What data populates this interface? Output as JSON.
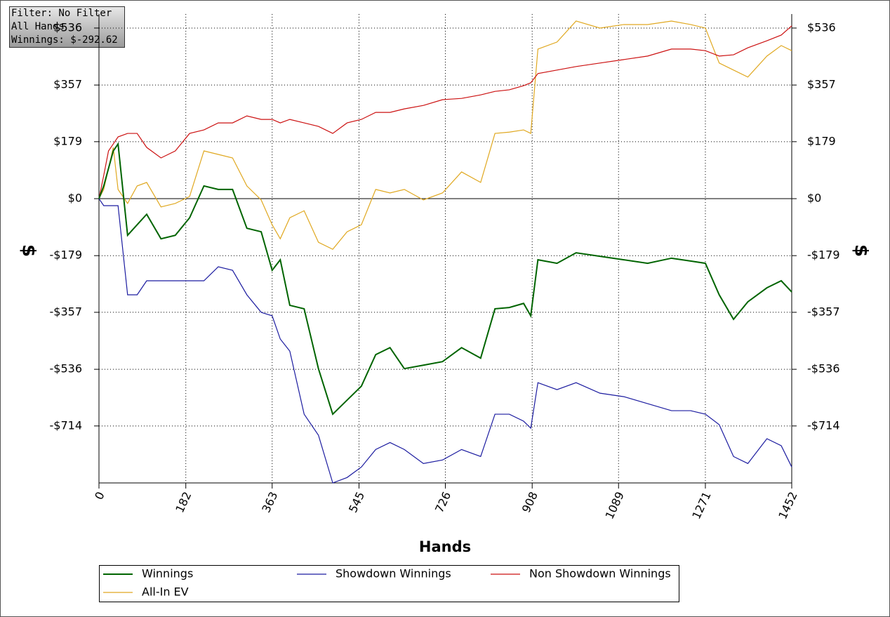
{
  "chart_data": {
    "type": "line",
    "xlabel": "Hands",
    "ylabel": "$",
    "annotations": [
      "Filter: No Filter",
      "All Hands",
      "Winnings: $-292.62"
    ],
    "grid": true,
    "legend": "bottom",
    "xlim": [
      0,
      1452
    ],
    "xticks": [
      0,
      182,
      363,
      545,
      726,
      908,
      1089,
      1271,
      1452
    ],
    "ylim": [
      -893,
      580
    ],
    "yticks": [
      {
        "value": 536,
        "label": "$536"
      },
      {
        "value": 357,
        "label": "$357"
      },
      {
        "value": 179,
        "label": "$179"
      },
      {
        "value": 0,
        "label": "$0"
      },
      {
        "value": -179,
        "label": "-$179"
      },
      {
        "value": -357,
        "label": "-$357"
      },
      {
        "value": -536,
        "label": "-$536"
      },
      {
        "value": -714,
        "label": "-$714"
      }
    ],
    "x": [
      0,
      10,
      20,
      30,
      40,
      60,
      80,
      100,
      130,
      160,
      190,
      220,
      250,
      280,
      310,
      340,
      363,
      380,
      400,
      430,
      460,
      490,
      520,
      550,
      580,
      610,
      640,
      680,
      720,
      760,
      800,
      830,
      860,
      890,
      905,
      920,
      960,
      1000,
      1050,
      1100,
      1150,
      1200,
      1240,
      1271,
      1300,
      1330,
      1360,
      1400,
      1430,
      1452
    ],
    "series": [
      {
        "name": "Winnings",
        "color": "#006400",
        "values": [
          0,
          40,
          95,
          150,
          172,
          -115,
          -82,
          -49,
          -126,
          -115,
          -60,
          40,
          29,
          29,
          -93,
          -104,
          -225,
          -192,
          -335,
          -346,
          -534,
          -677,
          -633,
          -589,
          -490,
          -468,
          -534,
          -523,
          -512,
          -468,
          -501,
          -346,
          -342,
          -329,
          -368,
          -192,
          -203,
          -170,
          -181,
          -192,
          -203,
          -187,
          -196,
          -203,
          -302,
          -379,
          -324,
          -280,
          -258,
          -293
        ]
      },
      {
        "name": "Showdown Winnings",
        "color": "#1c1ca0",
        "values": [
          0,
          -22,
          -22,
          -22,
          -22,
          -302,
          -302,
          -258,
          -258,
          -258,
          -258,
          -258,
          -214,
          -225,
          -302,
          -357,
          -368,
          -441,
          -479,
          -677,
          -743,
          -893,
          -876,
          -843,
          -788,
          -766,
          -788,
          -832,
          -821,
          -788,
          -810,
          -677,
          -677,
          -699,
          -721,
          -578,
          -600,
          -578,
          -611,
          -622,
          -644,
          -666,
          -666,
          -677,
          -710,
          -810,
          -832,
          -754,
          -776,
          -843
        ]
      },
      {
        "name": "Non Showdown Winnings",
        "color": "#cc1111",
        "values": [
          0,
          73,
          150,
          172,
          194,
          205,
          205,
          161,
          128,
          150,
          205,
          216,
          238,
          238,
          260,
          249,
          249,
          238,
          249,
          238,
          227,
          205,
          238,
          249,
          271,
          271,
          282,
          293,
          311,
          315,
          326,
          337,
          342,
          355,
          364,
          393,
          404,
          415,
          426,
          437,
          448,
          470,
          470,
          465,
          448,
          452,
          474,
          496,
          514,
          543
        ]
      },
      {
        "name": "All-In EV",
        "color": "#e0a820",
        "values": [
          0,
          29,
          95,
          161,
          29,
          -15,
          40,
          51,
          -26,
          -15,
          7,
          150,
          139,
          128,
          40,
          -4,
          -82,
          -126,
          -60,
          -38,
          -137,
          -159,
          -104,
          -82,
          29,
          18,
          29,
          -4,
          18,
          84,
          51,
          205,
          209,
          216,
          205,
          470,
          492,
          558,
          536,
          547,
          547,
          558,
          547,
          536,
          426,
          404,
          382,
          448,
          481,
          465
        ]
      }
    ]
  }
}
